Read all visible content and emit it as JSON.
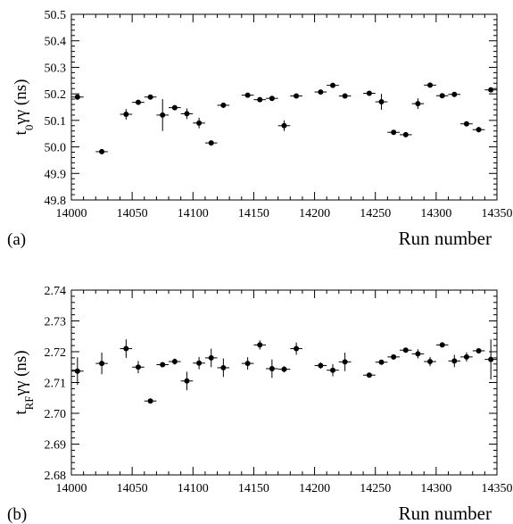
{
  "chart_data": [
    {
      "panel_label": "(a)",
      "type": "scatter",
      "xlabel": "Run number",
      "ylabel": {
        "main": "t",
        "sub": "0",
        "tail": "γγ (ns)"
      },
      "xlim": [
        14000,
        14350
      ],
      "ylim": [
        49.8,
        50.5
      ],
      "xticks": [
        14000,
        14050,
        14100,
        14150,
        14200,
        14250,
        14300,
        14350
      ],
      "yticks": [
        49.8,
        49.9,
        50.0,
        50.1,
        50.2,
        50.3,
        50.4,
        50.5
      ],
      "ytick_labels": [
        "49.8",
        "49.9",
        "50.0",
        "50.1",
        "50.2",
        "50.3",
        "50.4",
        "50.5"
      ],
      "grid": false,
      "points": [
        {
          "x": 14005,
          "y": 50.188,
          "yerr": 0.004
        },
        {
          "x": 14025,
          "y": 49.982,
          "yerr": 0.003
        },
        {
          "x": 14045,
          "y": 50.123,
          "yerr": 0.02
        },
        {
          "x": 14055,
          "y": 50.168,
          "yerr": 0.006
        },
        {
          "x": 14065,
          "y": 50.188,
          "yerr": 0.005
        },
        {
          "x": 14075,
          "y": 50.12,
          "yerr": 0.06
        },
        {
          "x": 14085,
          "y": 50.148,
          "yerr": 0.006
        },
        {
          "x": 14095,
          "y": 50.125,
          "yerr": 0.02
        },
        {
          "x": 14105,
          "y": 50.09,
          "yerr": 0.02
        },
        {
          "x": 14115,
          "y": 50.015,
          "yerr": 0.004
        },
        {
          "x": 14125,
          "y": 50.157,
          "yerr": 0.01
        },
        {
          "x": 14145,
          "y": 50.195,
          "yerr": 0.006
        },
        {
          "x": 14155,
          "y": 50.178,
          "yerr": 0.005
        },
        {
          "x": 14165,
          "y": 50.183,
          "yerr": 0.005
        },
        {
          "x": 14175,
          "y": 50.08,
          "yerr": 0.02
        },
        {
          "x": 14185,
          "y": 50.192,
          "yerr": 0.004
        },
        {
          "x": 14205,
          "y": 50.207,
          "yerr": 0.005
        },
        {
          "x": 14215,
          "y": 50.232,
          "yerr": 0.005
        },
        {
          "x": 14225,
          "y": 50.192,
          "yerr": 0.005
        },
        {
          "x": 14245,
          "y": 50.202,
          "yerr": 0.004
        },
        {
          "x": 14255,
          "y": 50.17,
          "yerr": 0.03
        },
        {
          "x": 14265,
          "y": 50.055,
          "yerr": 0.005
        },
        {
          "x": 14275,
          "y": 50.046,
          "yerr": 0.005
        },
        {
          "x": 14285,
          "y": 50.163,
          "yerr": 0.02
        },
        {
          "x": 14295,
          "y": 50.233,
          "yerr": 0.005
        },
        {
          "x": 14305,
          "y": 50.193,
          "yerr": 0.005
        },
        {
          "x": 14315,
          "y": 50.198,
          "yerr": 0.005
        },
        {
          "x": 14325,
          "y": 50.087,
          "yerr": 0.008
        },
        {
          "x": 14335,
          "y": 50.065,
          "yerr": 0.01
        },
        {
          "x": 14345,
          "y": 50.215,
          "yerr": 0.007
        }
      ]
    },
    {
      "panel_label": "(b)",
      "type": "scatter",
      "xlabel": "Run number",
      "ylabel": {
        "main": "t",
        "sub": "RF",
        "tail": "γγ (ns)"
      },
      "xlim": [
        14000,
        14350
      ],
      "ylim": [
        2.68,
        2.74
      ],
      "xticks": [
        14000,
        14050,
        14100,
        14150,
        14200,
        14250,
        14300,
        14350
      ],
      "yticks": [
        2.68,
        2.69,
        2.7,
        2.71,
        2.72,
        2.73,
        2.74
      ],
      "ytick_labels": [
        "2.68",
        "2.69",
        "2.70",
        "2.71",
        "2.72",
        "2.73",
        "2.74"
      ],
      "grid": false,
      "points": [
        {
          "x": 14005,
          "y": 2.7137,
          "yerr": 0.0045
        },
        {
          "x": 14025,
          "y": 2.7162,
          "yerr": 0.0035
        },
        {
          "x": 14045,
          "y": 2.721,
          "yerr": 0.003
        },
        {
          "x": 14055,
          "y": 2.715,
          "yerr": 0.002
        },
        {
          "x": 14065,
          "y": 2.704,
          "yerr": 0.0008
        },
        {
          "x": 14075,
          "y": 2.7158,
          "yerr": 0.0005
        },
        {
          "x": 14085,
          "y": 2.7168,
          "yerr": 0.001
        },
        {
          "x": 14095,
          "y": 2.7105,
          "yerr": 0.003
        },
        {
          "x": 14105,
          "y": 2.7163,
          "yerr": 0.002
        },
        {
          "x": 14115,
          "y": 2.718,
          "yerr": 0.003
        },
        {
          "x": 14125,
          "y": 2.7148,
          "yerr": 0.003
        },
        {
          "x": 14145,
          "y": 2.7162,
          "yerr": 0.002
        },
        {
          "x": 14155,
          "y": 2.7222,
          "yerr": 0.0015
        },
        {
          "x": 14165,
          "y": 2.7145,
          "yerr": 0.003
        },
        {
          "x": 14175,
          "y": 2.7143,
          "yerr": 0.001
        },
        {
          "x": 14185,
          "y": 2.721,
          "yerr": 0.002
        },
        {
          "x": 14205,
          "y": 2.7155,
          "yerr": 0.001
        },
        {
          "x": 14215,
          "y": 2.714,
          "yerr": 0.002
        },
        {
          "x": 14225,
          "y": 2.7167,
          "yerr": 0.003
        },
        {
          "x": 14245,
          "y": 2.7124,
          "yerr": 0.0005
        },
        {
          "x": 14255,
          "y": 2.7166,
          "yerr": 0.0008
        },
        {
          "x": 14265,
          "y": 2.7183,
          "yerr": 0.0008
        },
        {
          "x": 14275,
          "y": 2.7205,
          "yerr": 0.0008
        },
        {
          "x": 14285,
          "y": 2.7193,
          "yerr": 0.0015
        },
        {
          "x": 14295,
          "y": 2.7168,
          "yerr": 0.0015
        },
        {
          "x": 14305,
          "y": 2.7222,
          "yerr": 0.0006
        },
        {
          "x": 14315,
          "y": 2.717,
          "yerr": 0.002
        },
        {
          "x": 14325,
          "y": 2.7183,
          "yerr": 0.0015
        },
        {
          "x": 14335,
          "y": 2.7203,
          "yerr": 0.0008
        },
        {
          "x": 14345,
          "y": 2.7175,
          "yerr": 0.0065
        }
      ]
    }
  ]
}
